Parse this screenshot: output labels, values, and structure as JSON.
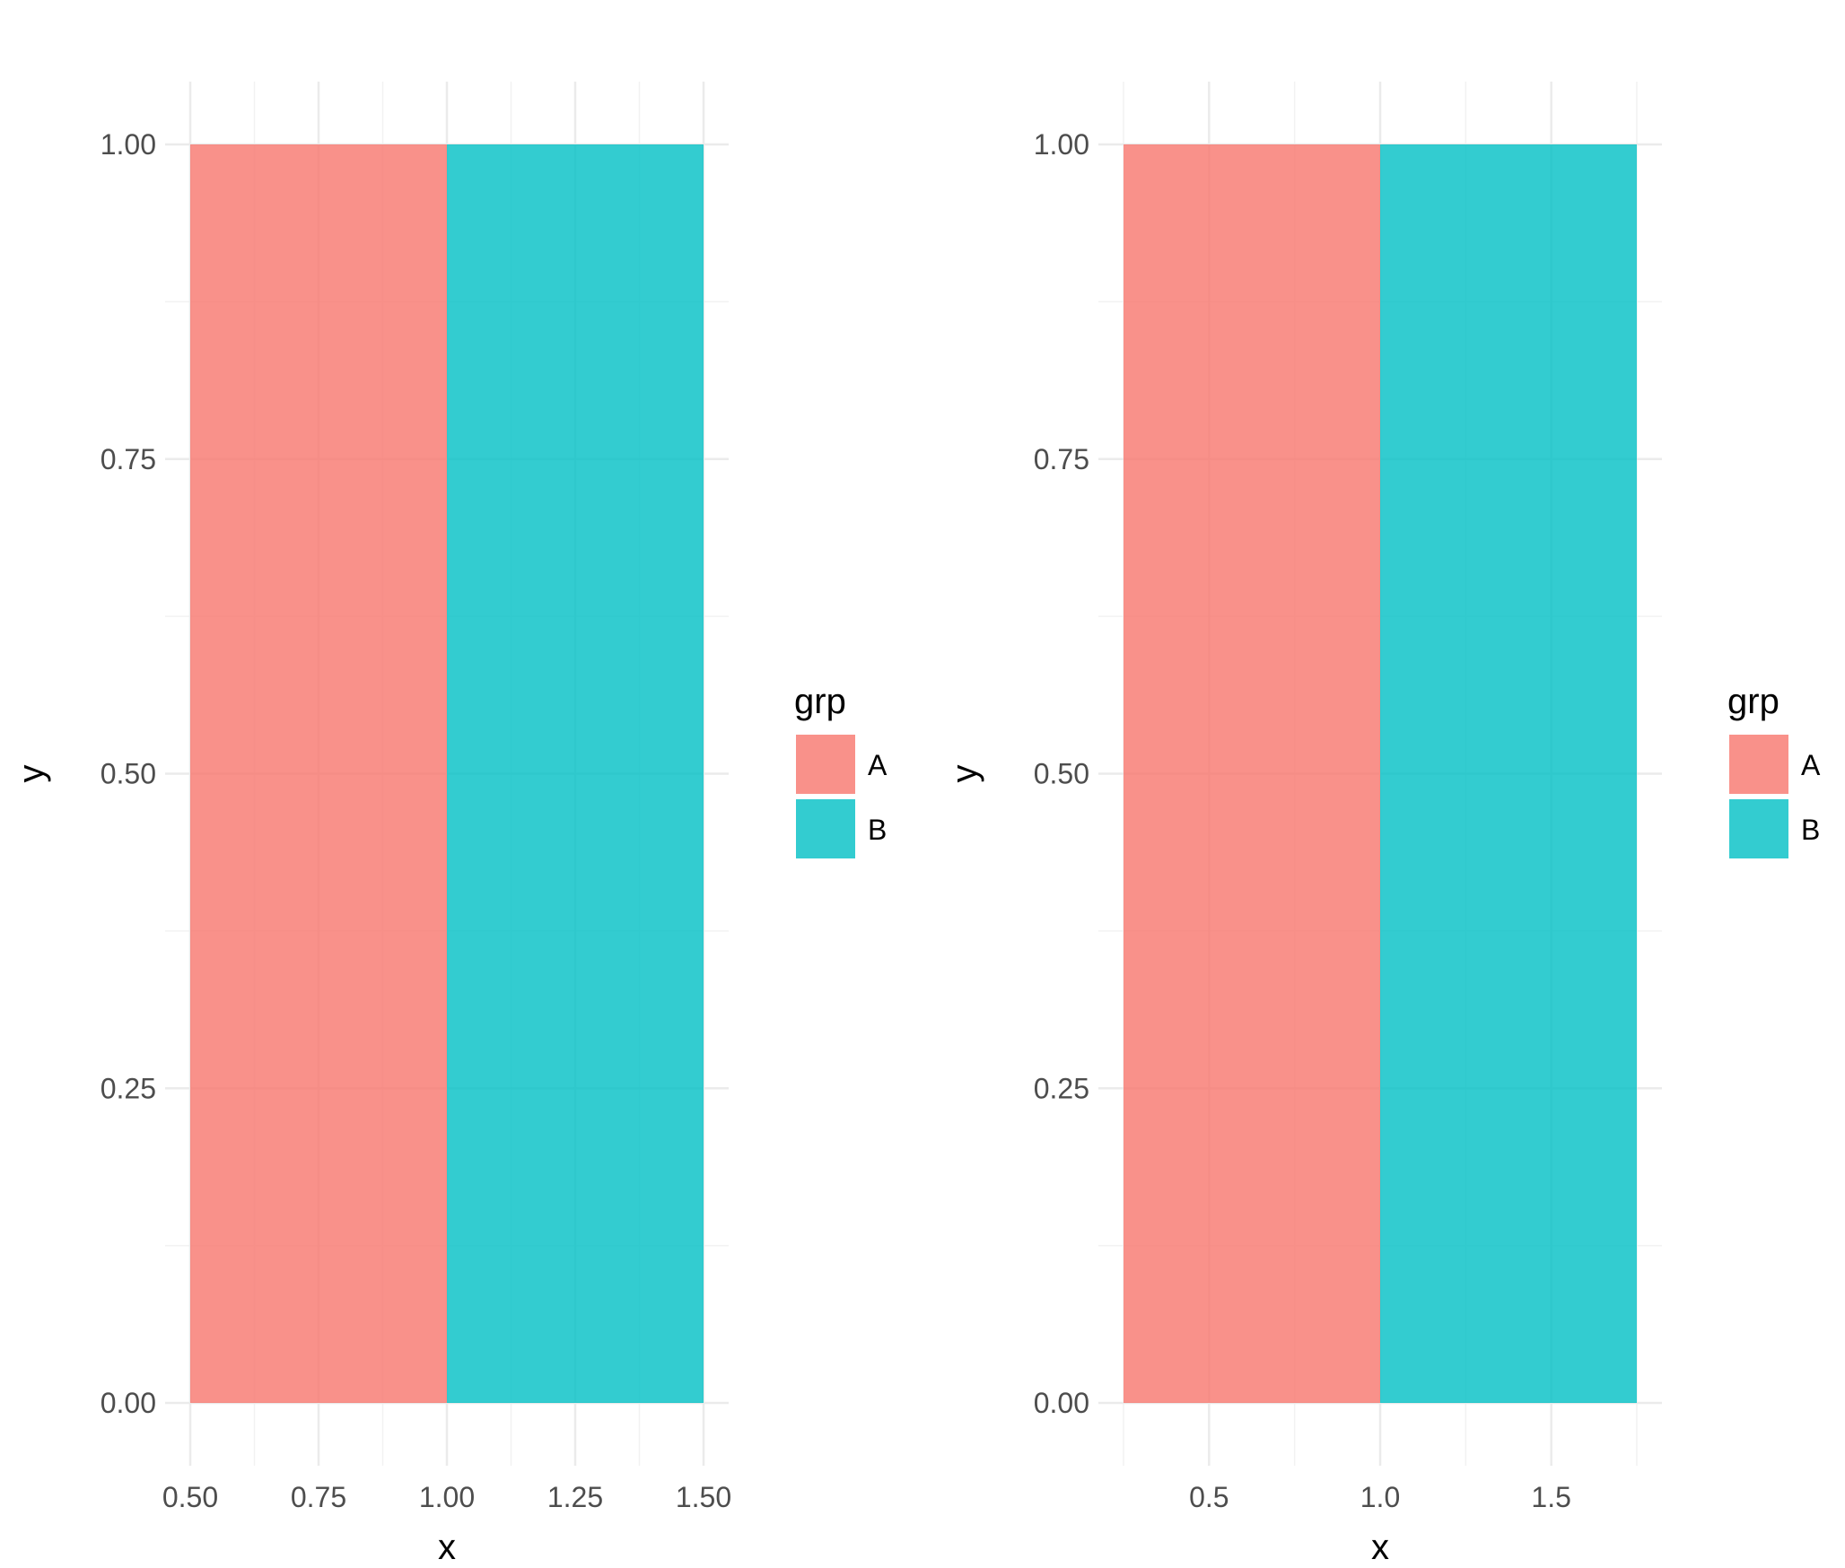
{
  "chart_data": [
    {
      "type": "bar",
      "facet": "left",
      "xlabel": "x",
      "ylabel": "y",
      "xlim": [
        0.5,
        1.5
      ],
      "ylim": [
        0,
        1
      ],
      "x_ticks": [
        "0.50",
        "0.75",
        "1.00",
        "1.25",
        "1.50"
      ],
      "x_tick_values": [
        0.5,
        0.75,
        1.0,
        1.25,
        1.5
      ],
      "y_ticks": [
        "0.00",
        "0.25",
        "0.50",
        "0.75",
        "1.00"
      ],
      "y_tick_values": [
        0,
        0.25,
        0.5,
        0.75,
        1.0
      ],
      "grid": true,
      "legend_position": "right",
      "legend": {
        "title": "grp",
        "entries": [
          {
            "label": "A",
            "color": "#F8766D"
          },
          {
            "label": "B",
            "color": "#00BFC4"
          }
        ]
      },
      "bars": [
        {
          "group": "A",
          "xmin": 0.5,
          "xmax": 1.0,
          "y": 1.0,
          "color": "#F8766D"
        },
        {
          "group": "B",
          "xmin": 1.0,
          "xmax": 1.5,
          "y": 1.0,
          "color": "#00BFC4"
        }
      ]
    },
    {
      "type": "bar",
      "facet": "right",
      "xlabel": "x",
      "ylabel": "y",
      "xlim": [
        0.25,
        1.75
      ],
      "ylim": [
        0,
        1
      ],
      "x_ticks": [
        "0.5",
        "1.0",
        "1.5"
      ],
      "x_tick_values": [
        0.5,
        1.0,
        1.5
      ],
      "y_ticks": [
        "0.00",
        "0.25",
        "0.50",
        "0.75",
        "1.00"
      ],
      "y_tick_values": [
        0,
        0.25,
        0.5,
        0.75,
        1.0
      ],
      "grid": true,
      "legend_position": "right",
      "legend": {
        "title": "grp",
        "entries": [
          {
            "label": "A",
            "color": "#F8766D"
          },
          {
            "label": "B",
            "color": "#00BFC4"
          }
        ]
      },
      "bars": [
        {
          "group": "A",
          "xmin": 0.25,
          "xmax": 1.0,
          "y": 1.0,
          "color": "#F8766D"
        },
        {
          "group": "B",
          "xmin": 1.0,
          "xmax": 1.75,
          "y": 1.0,
          "color": "#00BFC4"
        }
      ]
    }
  ],
  "colors": {
    "grid_major": "#EBEBEB",
    "grid_minor": "#F2F2F2",
    "tick_text": "#4D4D4D",
    "axis_title": "#000000"
  }
}
